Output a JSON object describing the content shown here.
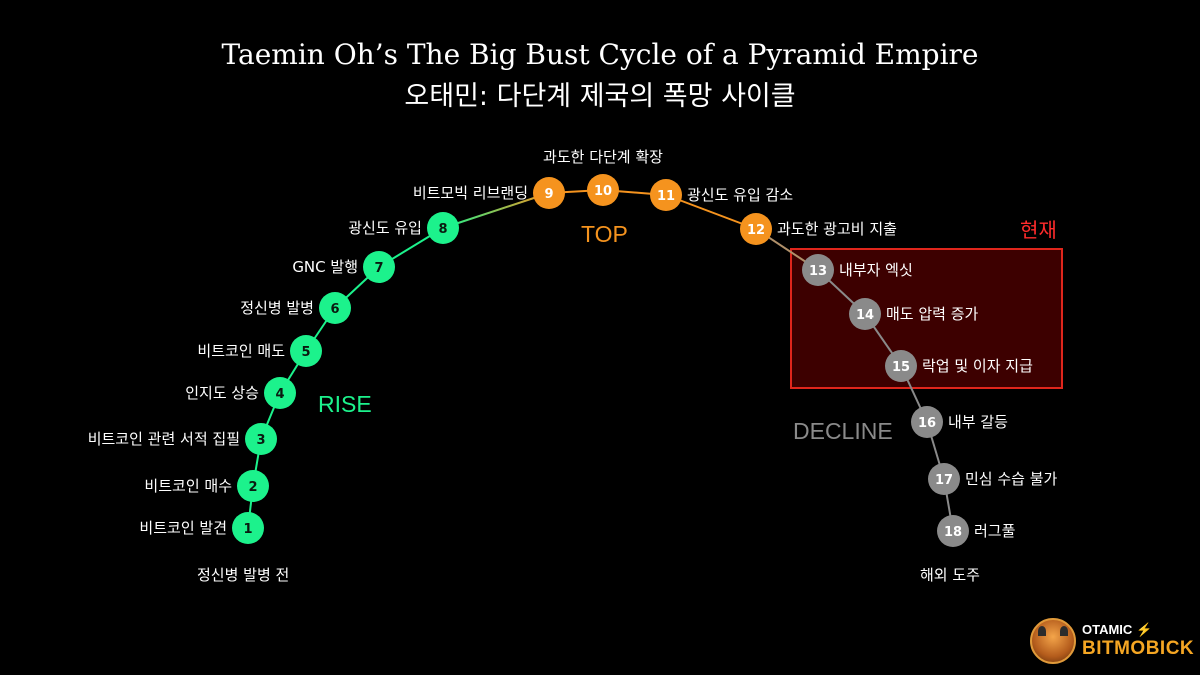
{
  "title_en": "Taemin Oh’s The Big Bust Cycle of a Pyramid Empire",
  "title_ko": "오태민: 다단계 제국의 폭망 사이클",
  "phases": {
    "rise": "RISE",
    "top": "TOP",
    "decline": "DECLINE"
  },
  "current": "현재",
  "start_label": "정신병 발병 전",
  "end_label": "해외 도주",
  "colors": {
    "rise": "#1cf28c",
    "top": "#f5931e",
    "decline": "#8a8a8a",
    "current": "#e0261c"
  },
  "steps": [
    {
      "n": "1",
      "label": "비트코인 발견"
    },
    {
      "n": "2",
      "label": "비트코인 매수"
    },
    {
      "n": "3",
      "label": "비트코인 관련 서적 집필"
    },
    {
      "n": "4",
      "label": "인지도 상승"
    },
    {
      "n": "5",
      "label": "비트코인 매도"
    },
    {
      "n": "6",
      "label": "정신병 발병"
    },
    {
      "n": "7",
      "label": "GNC 발행"
    },
    {
      "n": "8",
      "label": "광신도 유입"
    },
    {
      "n": "9",
      "label": "비트모빅 리브랜딩"
    },
    {
      "n": "10",
      "label": "과도한 다단계 확장"
    },
    {
      "n": "11",
      "label": "광신도 유입 감소"
    },
    {
      "n": "12",
      "label": "과도한 광고비 지출"
    },
    {
      "n": "13",
      "label": "내부자 엑싯"
    },
    {
      "n": "14",
      "label": "매도 압력 증가"
    },
    {
      "n": "15",
      "label": "락업 및 이자 지급"
    },
    {
      "n": "16",
      "label": "내부 갈등"
    },
    {
      "n": "17",
      "label": "민심 수습 불가"
    },
    {
      "n": "18",
      "label": "러그풀"
    }
  ],
  "logo": {
    "line1": "OTAMIC",
    "bolt": "⚡",
    "line2": "BITMOBICK",
    "emblem": "bull-mascot-icon"
  }
}
